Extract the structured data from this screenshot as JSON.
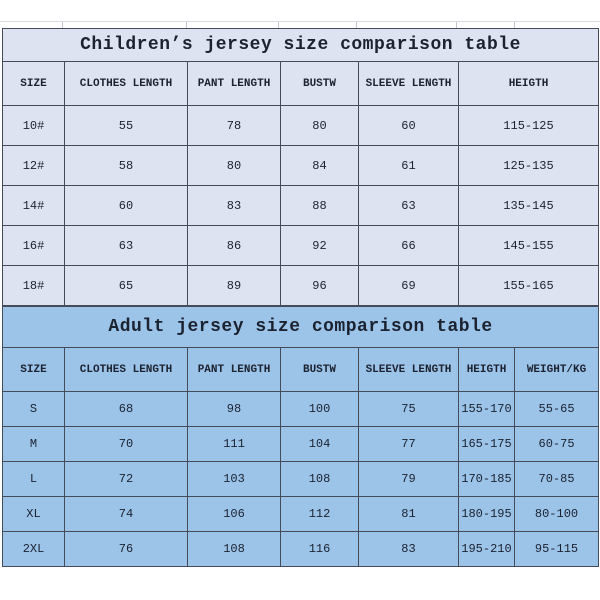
{
  "colors": {
    "page_background": "#ffffff",
    "border": "#454b58",
    "text": "#1b2230",
    "gridline": "#d7d9de",
    "children_fill": "#dee3f1",
    "adult_fill": "#9cc3e8"
  },
  "tables": [
    {
      "id": "children",
      "title": "Children’s jersey size comparison table",
      "columns": [
        "SIZE",
        "CLOTHES LENGTH",
        "PANT LENGTH",
        "BUSTW",
        "SLEEVE LENGTH",
        "HEIGTH"
      ],
      "rows": [
        [
          "10#",
          "55",
          "78",
          "80",
          "60",
          "115-125"
        ],
        [
          "12#",
          "58",
          "80",
          "84",
          "61",
          "125-135"
        ],
        [
          "14#",
          "60",
          "83",
          "88",
          "63",
          "135-145"
        ],
        [
          "16#",
          "63",
          "86",
          "92",
          "66",
          "145-155"
        ],
        [
          "18#",
          "65",
          "89",
          "96",
          "69",
          "155-165"
        ]
      ],
      "fill": "#dee3f1"
    },
    {
      "id": "adult",
      "title": "Adult jersey size comparison table",
      "columns": [
        "SIZE",
        "CLOTHES LENGTH",
        "PANT LENGTH",
        "BUSTW",
        "SLEEVE LENGTH",
        "HEIGTH",
        "WEIGHT/KG"
      ],
      "rows": [
        [
          "S",
          "68",
          "98",
          "100",
          "75",
          "155-170",
          "55-65"
        ],
        [
          "M",
          "70",
          "111",
          "104",
          "77",
          "165-175",
          "60-75"
        ],
        [
          "L",
          "72",
          "103",
          "108",
          "79",
          "170-185",
          "70-85"
        ],
        [
          "XL",
          "74",
          "106",
          "112",
          "81",
          "180-195",
          "80-100"
        ],
        [
          "2XL",
          "76",
          "108",
          "116",
          "83",
          "195-210",
          "95-115"
        ]
      ],
      "fill": "#9cc3e8"
    }
  ]
}
